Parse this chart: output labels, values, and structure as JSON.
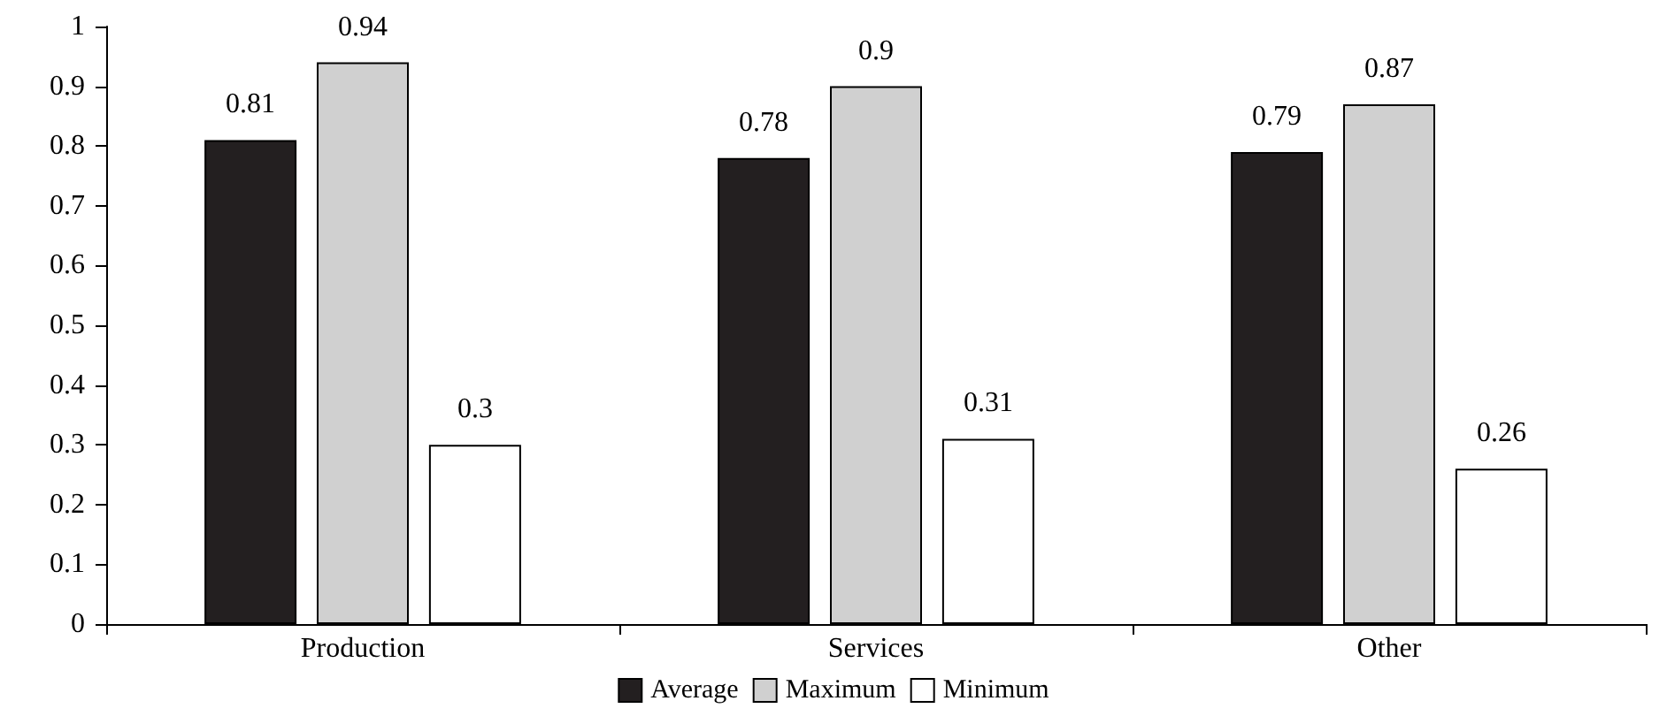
{
  "chart_data": {
    "type": "bar",
    "categories": [
      "Production",
      "Services",
      "Other"
    ],
    "series": [
      {
        "name": "Average",
        "color": "#231f20",
        "values": [
          0.81,
          0.78,
          0.79
        ]
      },
      {
        "name": "Maximum",
        "color": "#d0d0d0",
        "values": [
          0.94,
          0.9,
          0.87
        ]
      },
      {
        "name": "Minimum",
        "color": "#ffffff",
        "values": [
          0.3,
          0.31,
          0.26
        ]
      }
    ],
    "ylim": [
      0,
      1
    ],
    "yticks": [
      0,
      0.1,
      0.2,
      0.3,
      0.4,
      0.5,
      0.6,
      0.7,
      0.8,
      0.9,
      1
    ],
    "grid": false,
    "legend": "bottom",
    "data_labels": true
  }
}
